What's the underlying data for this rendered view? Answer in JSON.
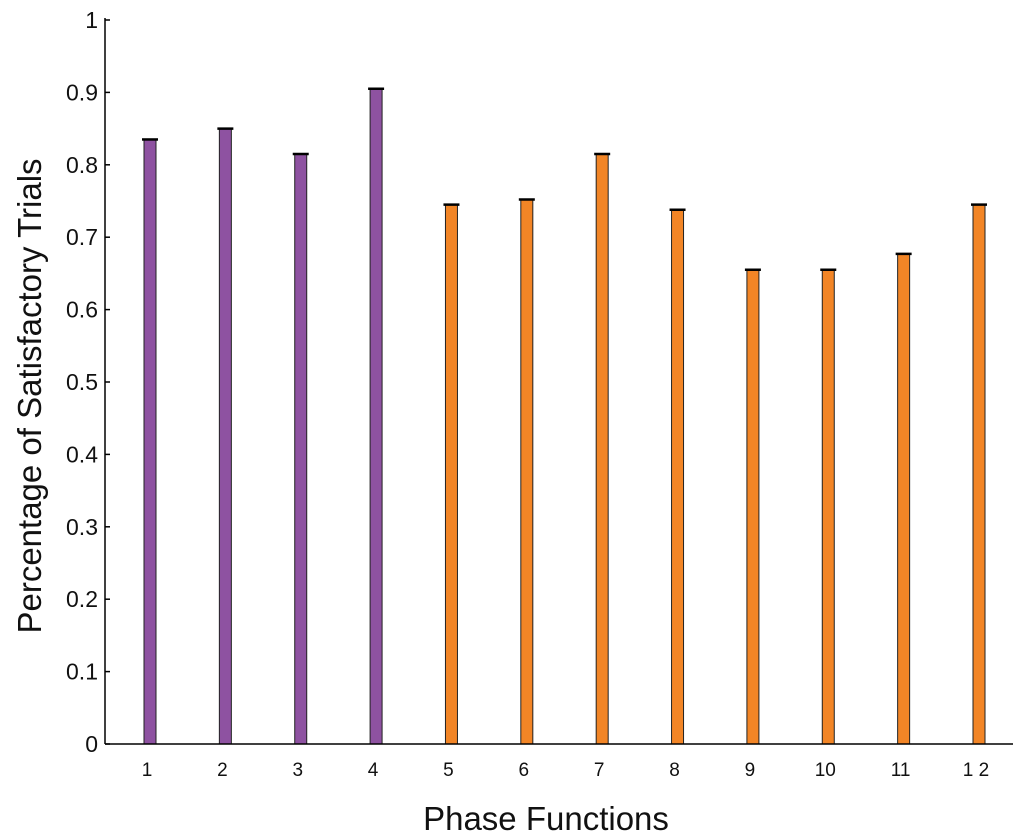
{
  "chart_data": {
    "type": "bar",
    "title": "",
    "xlabel": "Phase Functions",
    "ylabel": "Percentage of Satisfactory Trials",
    "categories": [
      "1",
      "2",
      "3",
      "4",
      "5",
      "6",
      "7",
      "8",
      "9",
      "10",
      "11",
      "1 2"
    ],
    "values": [
      0.835,
      0.85,
      0.815,
      0.905,
      0.745,
      0.752,
      0.815,
      0.738,
      0.655,
      0.655,
      0.677,
      0.745
    ],
    "bar_colors": [
      "#8e52a1",
      "#8e52a1",
      "#8e52a1",
      "#8e52a1",
      "#f28526",
      "#f28526",
      "#f28526",
      "#f28526",
      "#f28526",
      "#f28526",
      "#f28526",
      "#f28526"
    ],
    "ylim": [
      0,
      1
    ],
    "yticks": [
      0,
      0.1,
      0.2,
      0.3,
      0.4,
      0.5,
      0.6,
      0.7,
      0.8,
      0.9,
      1
    ],
    "ytick_labels": [
      "0",
      "0.1",
      "0.2",
      "0.3",
      "0.4",
      "0.5",
      "0.6",
      "0.7",
      "0.8",
      "0.9",
      "1"
    ],
    "grid": false,
    "legend": "none"
  }
}
